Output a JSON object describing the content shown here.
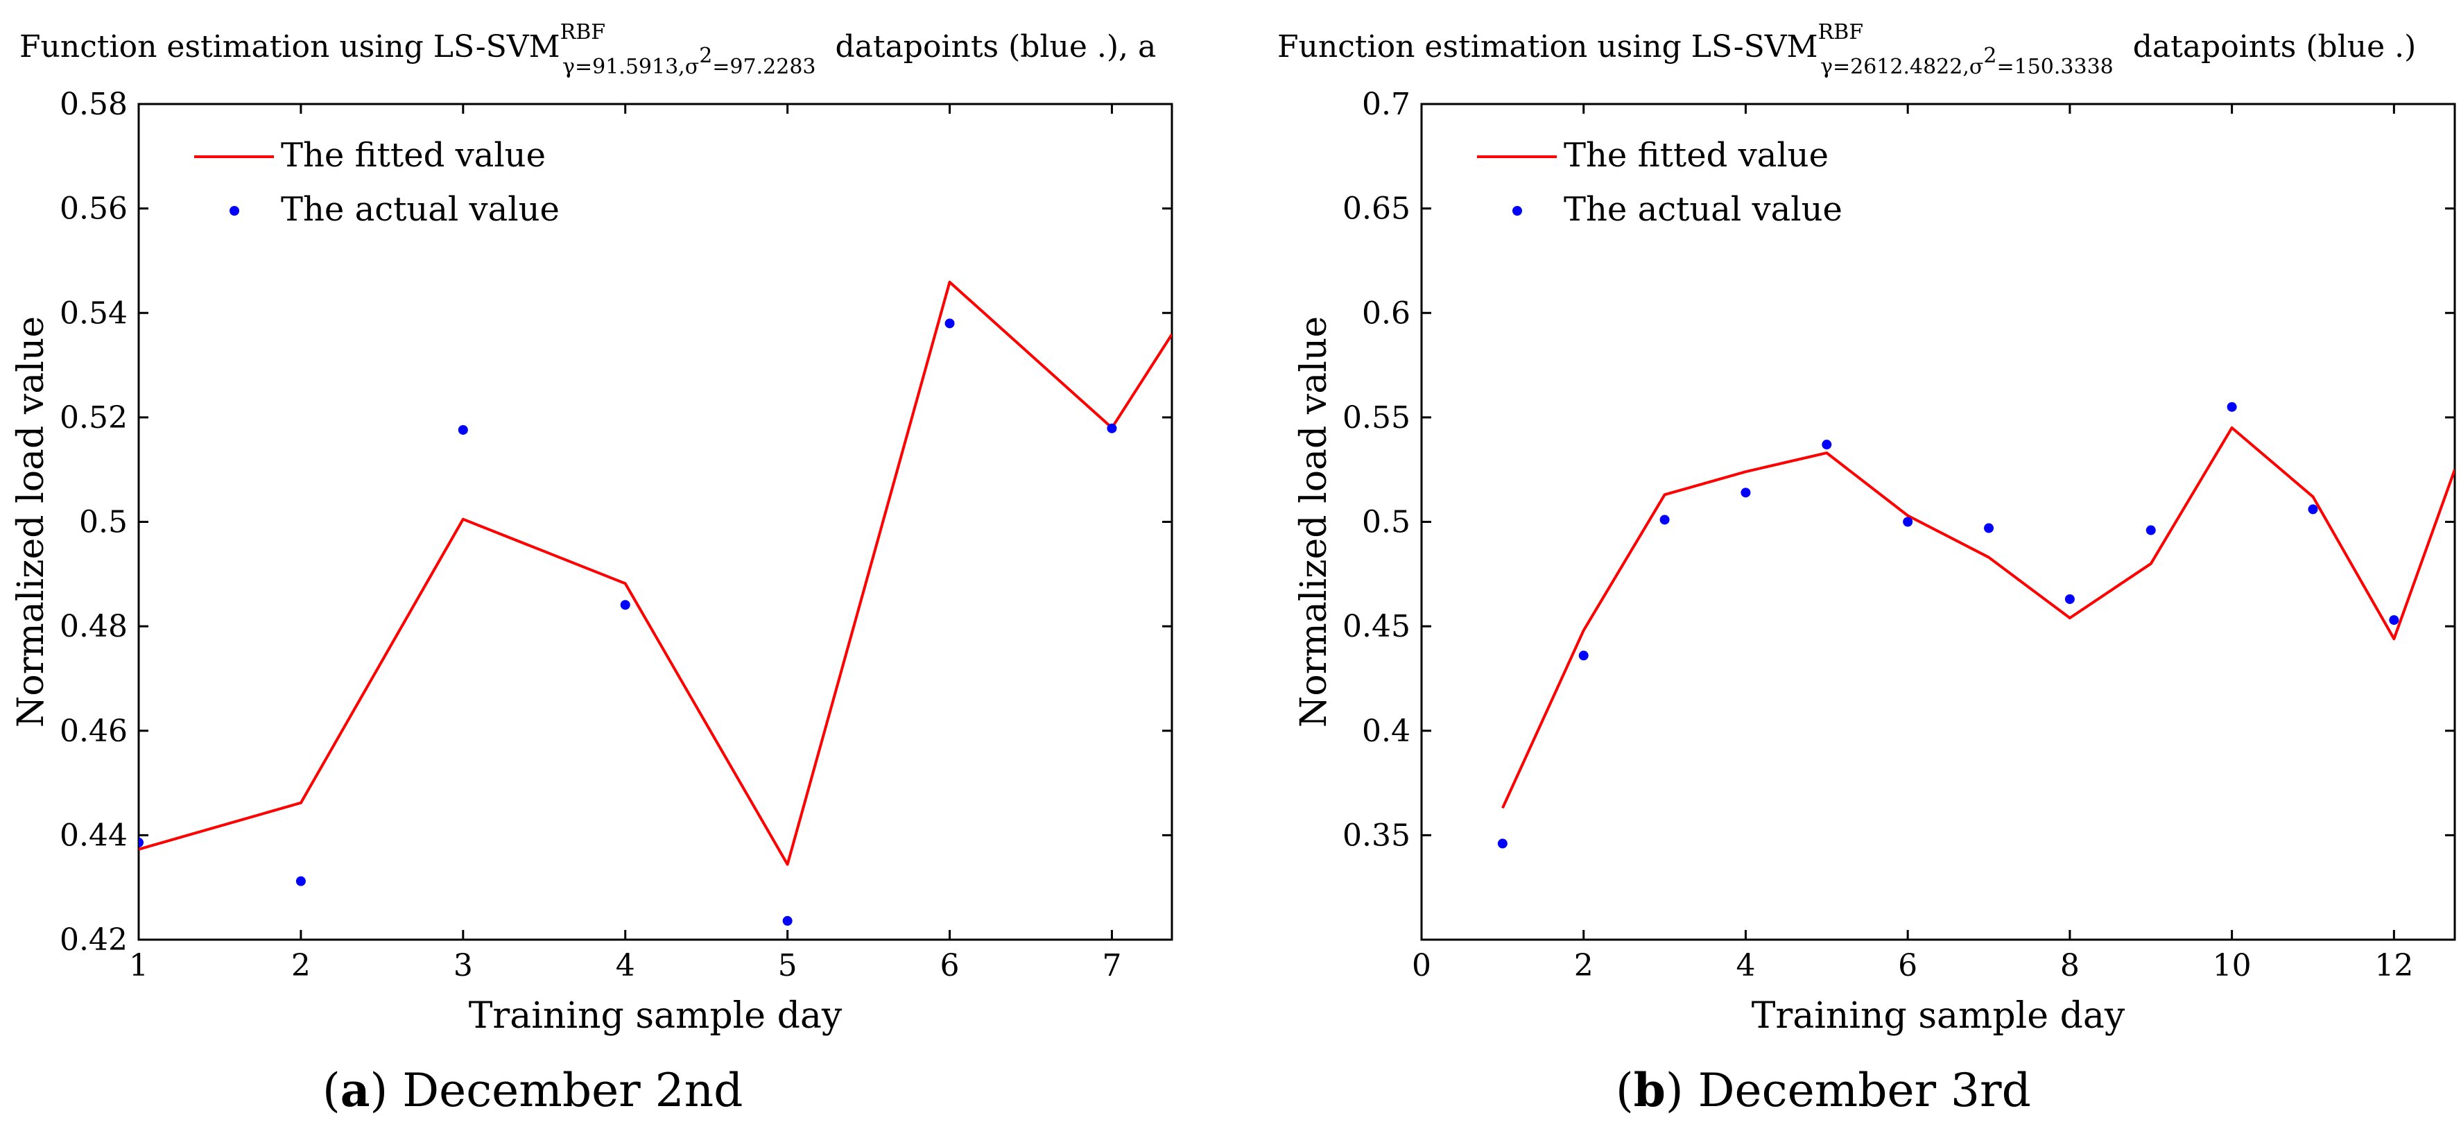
{
  "chart_data": [
    {
      "type": "line",
      "title": {
        "prefix": "Function estimation using",
        "model": "LS-SVM",
        "superscript": "RBF",
        "subscript_a": "γ=91.5913,σ",
        "subscript_b": "2",
        "subscript_c": "=97.2283",
        "suffix": "datapoints (blue .), a"
      },
      "xlabel": "Training sample day",
      "ylabel": "Normalized load value",
      "xlim": [
        1,
        7.37
      ],
      "ylim": [
        0.42,
        0.58
      ],
      "x_ticks": [
        "1",
        "2",
        "3",
        "4",
        "5",
        "6",
        "7"
      ],
      "y_ticks": [
        "0.42",
        "0.44",
        "0.46",
        "0.48",
        "0.5",
        "0.52",
        "0.54",
        "0.56",
        "0.58"
      ],
      "legend_position": "top-left",
      "series": [
        {
          "name": "The fitted value",
          "style": "line",
          "color": "#ff0000",
          "points": [
            [
              1,
              0.4373
            ],
            [
              2,
              0.4462
            ],
            [
              3,
              0.5005
            ],
            [
              4,
              0.4882
            ],
            [
              5,
              0.4344
            ],
            [
              6,
              0.5459
            ],
            [
              7,
              0.518
            ],
            [
              7.37,
              0.5359
            ]
          ]
        },
        {
          "name": "The actual value",
          "style": "marker",
          "color": "#0000ff",
          "points": [
            [
              1,
              0.4386
            ],
            [
              2,
              0.4312
            ],
            [
              3,
              0.5176
            ],
            [
              4,
              0.4841
            ],
            [
              5,
              0.4236
            ],
            [
              6,
              0.538
            ],
            [
              7,
              0.5179
            ]
          ]
        }
      ],
      "caption": {
        "letter": "a",
        "text": " December 2nd"
      }
    },
    {
      "type": "line",
      "title": {
        "prefix": "Function estimation using",
        "model": "LS-SVM",
        "superscript": "RBF",
        "subscript_a": "γ=2612.4822,σ",
        "subscript_b": "2",
        "subscript_c": "=150.3338",
        "suffix": "datapoints (blue .)"
      },
      "xlabel": "Training sample day",
      "ylabel": "Normalized load value",
      "xlim": [
        0,
        12.75
      ],
      "ylim": [
        0.3,
        0.7
      ],
      "x_ticks": [
        "0",
        "2",
        "4",
        "6",
        "8",
        "10",
        "12"
      ],
      "y_ticks": [
        "0.35",
        "0.4",
        "0.45",
        "0.5",
        "0.55",
        "0.6",
        "0.65",
        "0.7"
      ],
      "legend_position": "top-left",
      "series": [
        {
          "name": "The fitted value",
          "style": "line",
          "color": "#ff0000",
          "points": [
            [
              1,
              0.363
            ],
            [
              2,
              0.448
            ],
            [
              3,
              0.513
            ],
            [
              4,
              0.524
            ],
            [
              5,
              0.533
            ],
            [
              6,
              0.503
            ],
            [
              7,
              0.483
            ],
            [
              8,
              0.454
            ],
            [
              9,
              0.48
            ],
            [
              10,
              0.545
            ],
            [
              11,
              0.512
            ],
            [
              12,
              0.444
            ],
            [
              12.75,
              0.525
            ]
          ]
        },
        {
          "name": "The actual value",
          "style": "marker",
          "color": "#0000ff",
          "points": [
            [
              1,
              0.346
            ],
            [
              2,
              0.436
            ],
            [
              3,
              0.501
            ],
            [
              4,
              0.514
            ],
            [
              5,
              0.537
            ],
            [
              6,
              0.5
            ],
            [
              7,
              0.497
            ],
            [
              8,
              0.463
            ],
            [
              9,
              0.496
            ],
            [
              10,
              0.555
            ],
            [
              11,
              0.506
            ],
            [
              12,
              0.453
            ]
          ]
        }
      ],
      "caption": {
        "letter": "b",
        "text": " December 3rd"
      }
    }
  ]
}
